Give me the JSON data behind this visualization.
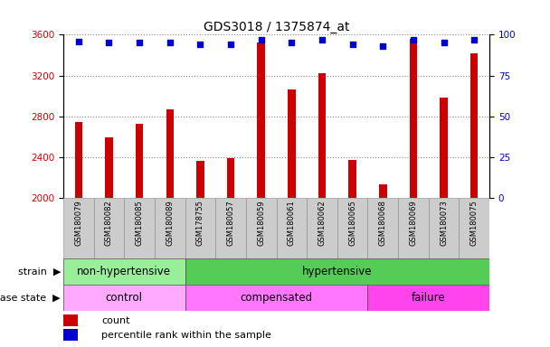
{
  "title": "GDS3018 / 1375874_at",
  "samples": [
    "GSM180079",
    "GSM180082",
    "GSM180085",
    "GSM180089",
    "GSM178755",
    "GSM180057",
    "GSM180059",
    "GSM180061",
    "GSM180062",
    "GSM180065",
    "GSM180068",
    "GSM180069",
    "GSM180073",
    "GSM180075"
  ],
  "counts": [
    2740,
    2590,
    2730,
    2870,
    2360,
    2390,
    3520,
    3060,
    3220,
    2370,
    2130,
    3560,
    2980,
    3420
  ],
  "percentile_ranks": [
    96,
    95,
    95,
    95,
    94,
    94,
    97,
    95,
    97,
    94,
    93,
    97,
    95,
    97
  ],
  "ylim_left": [
    2000,
    3600
  ],
  "ylim_right": [
    0,
    100
  ],
  "yticks_left": [
    2000,
    2400,
    2800,
    3200,
    3600
  ],
  "yticks_right": [
    0,
    25,
    50,
    75,
    100
  ],
  "strain_groups": [
    {
      "label": "non-hypertensive",
      "start": 0,
      "end": 4,
      "color": "#99EE99"
    },
    {
      "label": "hypertensive",
      "start": 4,
      "end": 14,
      "color": "#55CC55"
    }
  ],
  "disease_groups": [
    {
      "label": "control",
      "start": 0,
      "end": 4,
      "color": "#FFAAFF"
    },
    {
      "label": "compensated",
      "start": 4,
      "end": 10,
      "color": "#FF77FF"
    },
    {
      "label": "failure",
      "start": 10,
      "end": 14,
      "color": "#FF44EE"
    }
  ],
  "bar_color": "#CC0000",
  "dot_color": "#0000CC",
  "grid_color": "#888888",
  "background_color": "#FFFFFF",
  "tick_label_color_left": "#CC0000",
  "tick_label_color_right": "#0000CC",
  "title_fontsize": 10,
  "tick_fontsize": 7.5,
  "label_fontsize": 8.5,
  "bar_width": 0.25,
  "ymin": 2000
}
